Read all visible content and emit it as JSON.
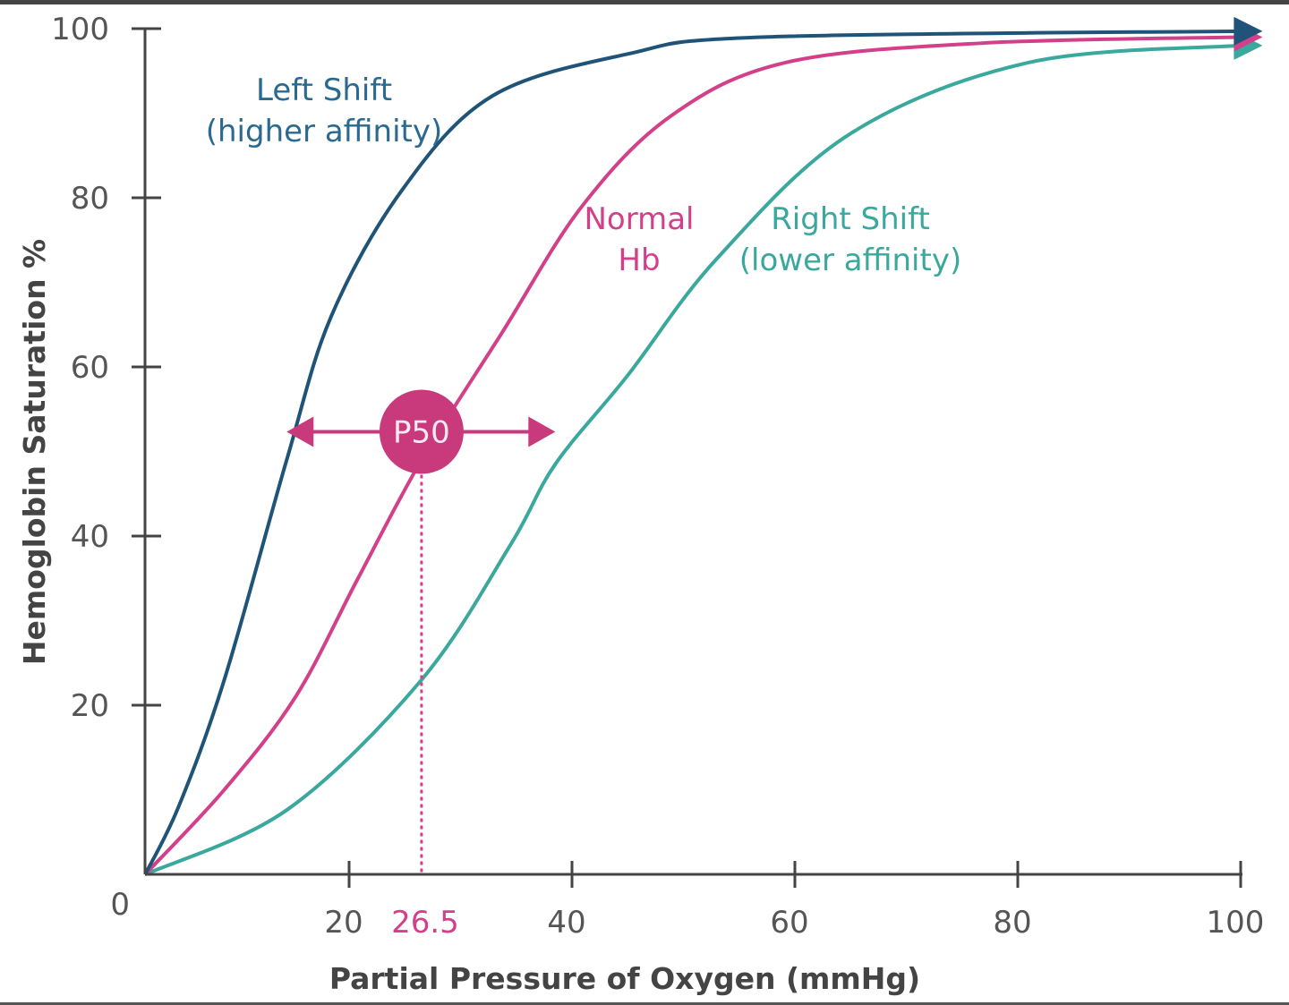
{
  "chart_data": {
    "type": "line",
    "title": "",
    "xlabel": "Partial Pressure of Oxygen (mmHg)",
    "ylabel": "Hemoglobin Saturation %",
    "xlim": [
      0,
      100
    ],
    "ylim": [
      0,
      100
    ],
    "xticks": [
      20,
      40,
      60,
      80,
      100
    ],
    "xtick_labels": [
      "20",
      "40",
      "60",
      "80",
      "100"
    ],
    "yticks": [
      0,
      20,
      40,
      60,
      80,
      100
    ],
    "ytick_labels": [
      "0",
      "20",
      "40",
      "60",
      "80",
      "100"
    ],
    "grid": false,
    "series": [
      {
        "name": "Left Shift (higher affinity)",
        "label_lines": [
          "Left Shift",
          "(higher affinity)"
        ],
        "color": "#1f5478",
        "x": [
          1.7,
          4.7,
          8.8,
          14.4,
          18.4,
          24.8,
          32.8,
          45,
          57,
          101
        ],
        "y": [
          0,
          8,
          23,
          49,
          66,
          81,
          92,
          97,
          99,
          99.7
        ]
      },
      {
        "name": "Normal Hb",
        "label_lines": [
          "Normal",
          "Hb"
        ],
        "color": "#d2408a",
        "x": [
          1.7,
          8.8,
          15.2,
          20.8,
          26.5,
          33.7,
          40.9,
          48.9,
          59.2,
          77,
          101
        ],
        "y": [
          0,
          10,
          21,
          35,
          49,
          64,
          79,
          89.7,
          96,
          98.3,
          99
        ]
      },
      {
        "name": "Right Shift (lower affinity)",
        "label_lines": [
          "Right Shift",
          "(lower affinity)"
        ],
        "color": "#3aa89c",
        "x": [
          1.7,
          14.4,
          26.5,
          34.5,
          38.5,
          45,
          53,
          65,
          81,
          101
        ],
        "y": [
          0,
          7.6,
          23,
          39,
          48.5,
          59,
          72.8,
          87.6,
          96,
          98
        ]
      }
    ],
    "annotations": {
      "p50_label": "P50",
      "p50_value": 26.5,
      "p50_value_label": "26.5",
      "p50_saturation": 50,
      "p50_arrow_range": [
        14.4,
        38.5
      ],
      "accent_color": "#c83a7c"
    }
  }
}
